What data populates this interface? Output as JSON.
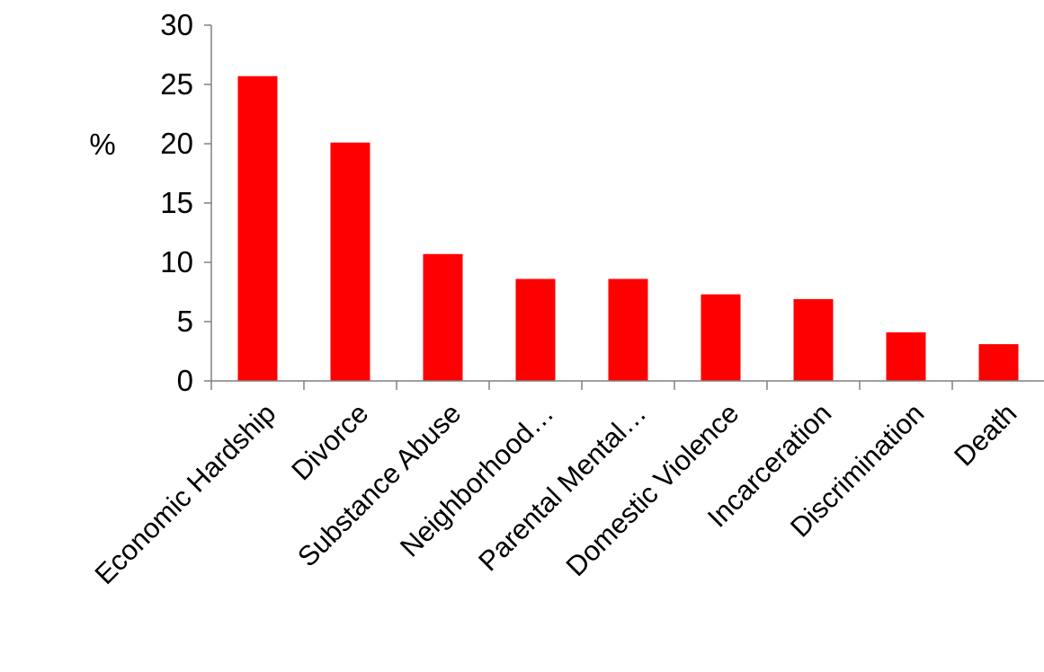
{
  "colors": {
    "bar": "#ff0000",
    "axis": "#808080"
  },
  "chart_data": {
    "type": "bar",
    "title": "",
    "xlabel": "",
    "ylabel": "%",
    "ylim": [
      0,
      30
    ],
    "yticks": [
      0,
      5,
      10,
      15,
      20,
      25,
      30
    ],
    "grid": false,
    "categories": [
      "Economic Hardship",
      "Divorce",
      "Substance Abuse",
      "Neighborhood…",
      "Parental Mental…",
      "Domestic Violence",
      "Incarceration",
      "Discrimination",
      "Death"
    ],
    "series": [
      {
        "values": [
          25.7,
          20.1,
          10.7,
          8.6,
          8.6,
          7.3,
          6.9,
          4.1,
          3.1
        ]
      }
    ]
  }
}
